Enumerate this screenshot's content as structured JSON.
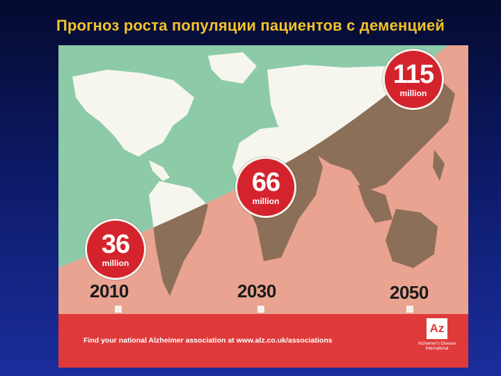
{
  "slide": {
    "title": "Прогноз роста популяции пациентов с деменцией"
  },
  "poster": {
    "colors": {
      "green_zone": "#8ccaa8",
      "pink_zone": "#e9a390",
      "land_in_green": "#f6f6ee",
      "land_in_pink": "#8c6f58",
      "bubble": "#d4232c",
      "footer": "#df3a3a"
    },
    "bubbles": [
      {
        "value": "36",
        "unit": "million",
        "year": "2010"
      },
      {
        "value": "66",
        "unit": "million",
        "year": "2030"
      },
      {
        "value": "115",
        "unit": "million",
        "year": "2050"
      }
    ],
    "footer": {
      "text": "Find your national Alzheimer association at www.alz.co.uk/associations",
      "logo_mark": "Az",
      "logo_name": "Alzheimer's Disease International"
    }
  }
}
